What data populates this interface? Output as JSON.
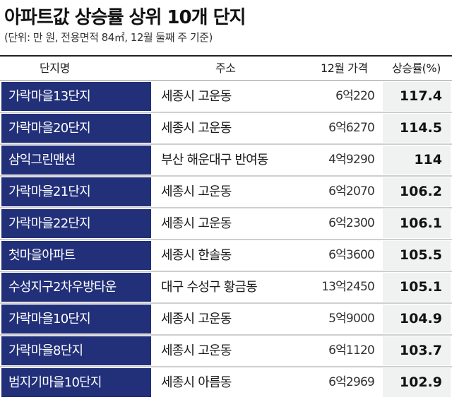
{
  "title": "아파트값 상승률 상위 10개 단지",
  "subtitle": "(단위: 만 원, 전용면적 84㎡, 12월 둘째 주 기준)",
  "chart_data": {
    "type": "table",
    "title": "아파트값 상승률 상위 10개 단지",
    "subtitle": "(단위: 만 원, 전용면적 84㎡, 12월 둘째 주 기준)",
    "columns": [
      "단지명",
      "주소",
      "12월 가격",
      "상승률(%)"
    ],
    "rows": [
      {
        "name": "가락마을13단지",
        "address": "세종시 고운동",
        "price": "6억220",
        "rate": "117.4"
      },
      {
        "name": "가락마을20단지",
        "address": "세종시 고운동",
        "price": "6억6270",
        "rate": "114.5"
      },
      {
        "name": "삼익그린맨션",
        "address": "부산 해운대구 반여동",
        "price": "4억9290",
        "rate": "114"
      },
      {
        "name": "가락마을21단지",
        "address": "세종시 고운동",
        "price": "6억2070",
        "rate": "106.2"
      },
      {
        "name": "가락마을22단지",
        "address": "세종시 고운동",
        "price": "6억2300",
        "rate": "106.1"
      },
      {
        "name": "첫마을아파트",
        "address": "세종시 한솔동",
        "price": "6억3600",
        "rate": "105.5"
      },
      {
        "name": "수성지구2차우방타운",
        "address": "대구 수성구 황금동",
        "price": "13억2450",
        "rate": "105.1"
      },
      {
        "name": "가락마을10단지",
        "address": "세종시 고운동",
        "price": "5억9000",
        "rate": "104.9"
      },
      {
        "name": "가락마을8단지",
        "address": "세종시 고운동",
        "price": "6억1120",
        "rate": "103.7"
      },
      {
        "name": "범지기마을10단지",
        "address": "세종시 아름동",
        "price": "6억2969",
        "rate": "102.9"
      }
    ]
  },
  "colors": {
    "name_cell_bg": "#22307a",
    "name_cell_text": "#ffffff",
    "rate_cell_bg": "#f0f1f1",
    "separator": "#cfcfcf"
  }
}
